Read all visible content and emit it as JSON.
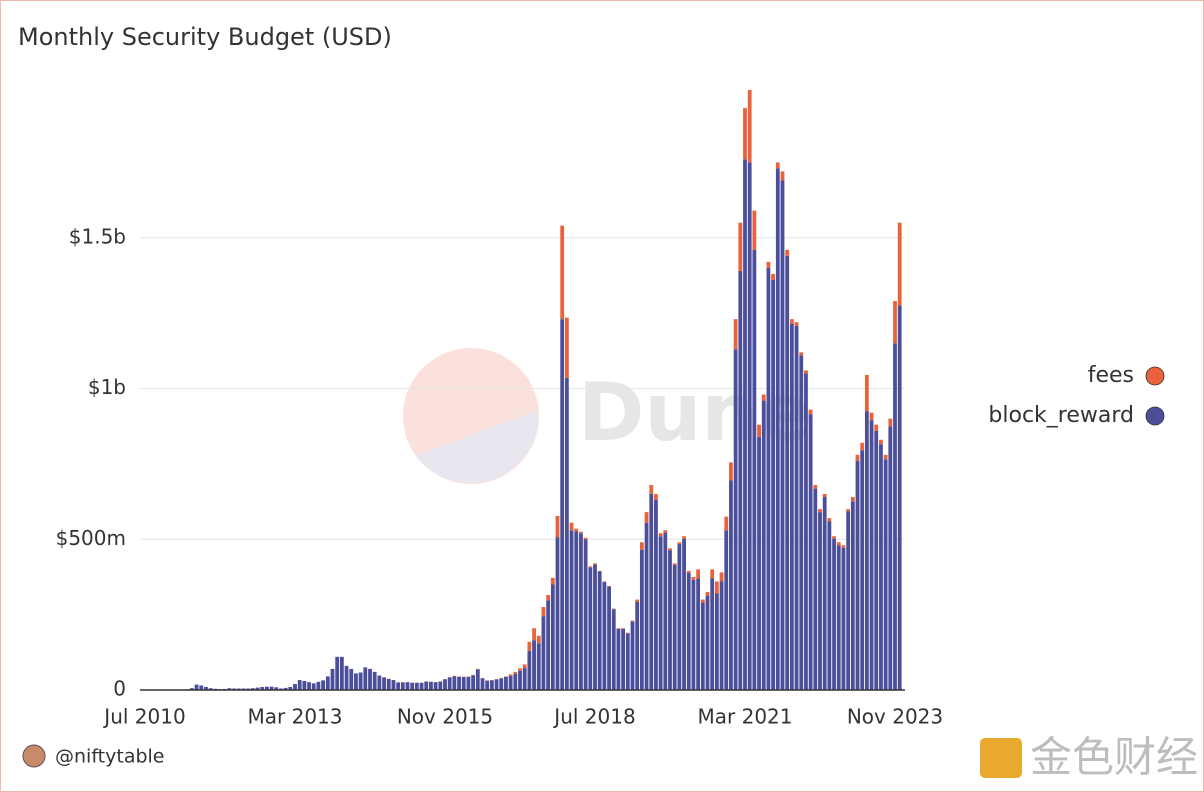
{
  "chart_data": {
    "type": "stacked_bar",
    "title": "Monthly Security Budget (USD)",
    "x": [
      "Jul 2010",
      "Aug 2010",
      "Sep 2010",
      "Oct 2010",
      "Nov 2010",
      "Dec 2010",
      "Jan 2011",
      "Feb 2011",
      "Mar 2011",
      "Apr 2011",
      "May 2011",
      "Jun 2011",
      "Jul 2011",
      "Aug 2011",
      "Sep 2011",
      "Oct 2011",
      "Nov 2011",
      "Dec 2011",
      "Jan 2012",
      "Feb 2012",
      "Mar 2012",
      "Apr 2012",
      "May 2012",
      "Jun 2012",
      "Jul 2012",
      "Aug 2012",
      "Sep 2012",
      "Oct 2012",
      "Nov 2012",
      "Dec 2012",
      "Jan 2013",
      "Feb 2013",
      "Mar 2013",
      "Apr 2013",
      "May 2013",
      "Jun 2013",
      "Jul 2013",
      "Aug 2013",
      "Sep 2013",
      "Oct 2013",
      "Nov 2013",
      "Dec 2013",
      "Jan 2014",
      "Feb 2014",
      "Mar 2014",
      "Apr 2014",
      "May 2014",
      "Jun 2014",
      "Jul 2014",
      "Aug 2014",
      "Sep 2014",
      "Oct 2014",
      "Nov 2014",
      "Dec 2014",
      "Jan 2015",
      "Feb 2015",
      "Mar 2015",
      "Apr 2015",
      "May 2015",
      "Jun 2015",
      "Jul 2015",
      "Aug 2015",
      "Sep 2015",
      "Oct 2015",
      "Nov 2015",
      "Dec 2015",
      "Jan 2016",
      "Feb 2016",
      "Mar 2016",
      "Apr 2016",
      "May 2016",
      "Jun 2016",
      "Jul 2016",
      "Aug 2016",
      "Sep 2016",
      "Oct 2016",
      "Nov 2016",
      "Dec 2016",
      "Jan 2017",
      "Feb 2017",
      "Mar 2017",
      "Apr 2017",
      "May 2017",
      "Jun 2017",
      "Jul 2017",
      "Aug 2017",
      "Sep 2017",
      "Oct 2017",
      "Nov 2017",
      "Dec 2017",
      "Jan 2018",
      "Feb 2018",
      "Mar 2018",
      "Apr 2018",
      "May 2018",
      "Jun 2018",
      "Jul 2018",
      "Aug 2018",
      "Sep 2018",
      "Oct 2018",
      "Nov 2018",
      "Dec 2018",
      "Jan 2019",
      "Feb 2019",
      "Mar 2019",
      "Apr 2019",
      "May 2019",
      "Jun 2019",
      "Jul 2019",
      "Aug 2019",
      "Sep 2019",
      "Oct 2019",
      "Nov 2019",
      "Dec 2019",
      "Jan 2020",
      "Feb 2020",
      "Mar 2020",
      "Apr 2020",
      "May 2020",
      "Jun 2020",
      "Jul 2020",
      "Aug 2020",
      "Sep 2020",
      "Oct 2020",
      "Nov 2020",
      "Dec 2020",
      "Jan 2021",
      "Feb 2021",
      "Mar 2021",
      "Apr 2021",
      "May 2021",
      "Jun 2021",
      "Jul 2021",
      "Aug 2021",
      "Sep 2021",
      "Oct 2021",
      "Nov 2021",
      "Dec 2021",
      "Jan 2022",
      "Feb 2022",
      "Mar 2022",
      "Apr 2022",
      "May 2022",
      "Jun 2022",
      "Jul 2022",
      "Aug 2022",
      "Sep 2022",
      "Oct 2022",
      "Nov 2022",
      "Dec 2022",
      "Jan 2023",
      "Feb 2023",
      "Mar 2023",
      "Apr 2023",
      "May 2023",
      "Jun 2023",
      "Jul 2023",
      "Aug 2023",
      "Sep 2023",
      "Oct 2023",
      "Nov 2023",
      "Dec 2023"
    ],
    "xticks": [
      "Jul 2010",
      "Mar 2013",
      "Nov 2015",
      "Jul 2018",
      "Mar 2021",
      "Nov 2023"
    ],
    "series": [
      {
        "name": "block_reward",
        "color": "#4b4e9b",
        "values": [
          100000.0,
          100000.0,
          100000.0,
          200000.0,
          300000.0,
          400000.0,
          600000.0,
          1000000.0,
          1100000.0,
          2000000.0,
          6000000.0,
          18000000.0,
          15000000.0,
          10000000.0,
          6000000.0,
          4000000.0,
          3000000.0,
          3500000.0,
          6000000.0,
          5000000.0,
          5000000.0,
          5000000.0,
          5000000.0,
          6000000.0,
          8000000.0,
          10000000.0,
          11000000.0,
          11000000.0,
          9000000.0,
          5000000.0,
          7000000.0,
          10000000.0,
          20000000.0,
          33000000.0,
          30000000.0,
          26000000.0,
          22000000.0,
          27000000.0,
          32000000.0,
          45000000.0,
          70000000.0,
          110000000.0,
          110000000.0,
          80000000.0,
          70000000.0,
          55000000.0,
          58000000.0,
          75000000.0,
          70000000.0,
          60000000.0,
          48000000.0,
          42000000.0,
          37000000.0,
          33000000.0,
          25000000.0,
          25000000.0,
          26000000.0,
          24000000.0,
          24000000.0,
          24000000.0,
          28000000.0,
          27000000.0,
          26000000.0,
          28000000.0,
          36000000.0,
          42000000.0,
          46000000.0,
          44000000.0,
          43000000.0,
          44000000.0,
          49000000.0,
          69000000.0,
          39000000.0,
          31000000.0,
          32000000.0,
          35000000.0,
          39000000.0,
          44000000.0,
          47000000.0,
          54000000.0,
          64000000.0,
          73000000.0,
          130000000.0,
          165000000.0,
          155000000.0,
          245000000.0,
          297000000.0,
          350000000.0,
          507000000.0,
          1230000000.0,
          1035000000.0,
          530000000.0,
          527000000.0,
          520000000.0,
          500000000.0,
          407000000.0,
          417000000.0,
          393000000.0,
          358000000.0,
          343000000.0,
          268000000.0,
          203000000.0,
          203000000.0,
          188000000.0,
          227000000.0,
          292000000.0,
          465000000.0,
          555000000.0,
          650000000.0,
          630000000.0,
          510000000.0,
          522000000.0,
          464000000.0,
          415000000.0,
          484000000.0,
          502000000.0,
          388000000.0,
          365000000.0,
          370000000.0,
          290000000.0,
          313000000.0,
          370000000.0,
          320000000.0,
          360000000.0,
          530000000.0,
          695000000.0,
          1130000000.0,
          1390000000.0,
          1760000000.0,
          1750000000.0,
          1460000000.0,
          840000000.0,
          960000000.0,
          1400000000.0,
          1360000000.0,
          1730000000.0,
          1690000000.0,
          1440000000.0,
          1215000000.0,
          1208000000.0,
          1110000000.0,
          1050000000.0,
          915000000.0,
          668000000.0,
          590000000.0,
          640000000.0,
          560000000.0,
          502000000.0,
          480000000.0,
          472000000.0,
          592000000.0,
          625000000.0,
          760000000.0,
          795000000.0,
          925000000.0,
          895000000.0,
          860000000.0,
          815000000.0,
          765000000.0,
          875000000.0,
          1150000000.0,
          1275000000.0
        ]
      },
      {
        "name": "fees",
        "color": "#e8633b",
        "values": [
          0,
          0,
          0,
          0,
          0,
          0,
          0,
          0,
          0,
          0,
          0,
          0,
          0,
          0,
          0,
          0,
          0,
          0,
          0,
          0,
          0,
          0,
          0,
          0,
          0,
          0,
          0,
          0,
          0,
          0,
          0,
          0,
          0,
          0,
          0,
          0,
          0,
          0,
          0,
          0,
          0,
          0,
          0,
          0,
          0,
          0,
          0,
          0,
          0,
          0,
          0,
          0,
          0,
          0,
          500000.0,
          500000.0,
          500000.0,
          500000.0,
          500000.0,
          500000.0,
          500000.0,
          500000.0,
          500000.0,
          500000.0,
          500000.0,
          500000.0,
          1000000.0,
          1000000.0,
          1000000.0,
          1000000.0,
          1000000.0,
          1000000.0,
          1000000.0,
          1000000.0,
          1000000.0,
          1000000.0,
          1000000.0,
          1000000.0,
          5000000.0,
          6000000.0,
          8000000.0,
          12000000.0,
          30000000.0,
          40000000.0,
          25000000.0,
          30000000.0,
          18000000.0,
          22000000.0,
          70000000.0,
          310000000.0,
          200000000.0,
          25000000.0,
          8000000.0,
          5000000.0,
          5000000.0,
          3000000.0,
          3000000.0,
          2000000.0,
          2000000.0,
          2000000.0,
          2000000.0,
          2000000.0,
          2000000.0,
          2000000.0,
          3000000.0,
          8000000.0,
          25000000.0,
          35000000.0,
          30000000.0,
          20000000.0,
          10000000.0,
          8000000.0,
          6000000.0,
          5000000.0,
          6000000.0,
          8000000.0,
          7000000.0,
          10000000.0,
          30000000.0,
          10000000.0,
          12000000.0,
          30000000.0,
          40000000.0,
          30000000.0,
          45000000.0,
          60000000.0,
          100000000.0,
          160000000.0,
          170000000.0,
          240000000.0,
          130000000.0,
          40000000.0,
          20000000.0,
          20000000.0,
          20000000.0,
          20000000.0,
          30000000.0,
          20000000.0,
          15000000.0,
          12000000.0,
          10000000.0,
          10000000.0,
          15000000.0,
          12000000.0,
          10000000.0,
          10000000.0,
          10000000.0,
          8000000.0,
          10000000.0,
          8000000.0,
          8000000.0,
          15000000.0,
          20000000.0,
          25000000.0,
          120000000.0,
          25000000.0,
          20000000.0,
          15000000.0,
          15000000.0,
          25000000.0,
          140000000.0,
          275000000.0
        ]
      }
    ],
    "ylim": [
      0,
      2000000000
    ],
    "yticks": [
      0,
      {
        "value": 500000000,
        "label": "$500m"
      },
      {
        "value": 1000000000,
        "label": "$1b"
      },
      {
        "value": 1500000000,
        "label": "$1.5b"
      }
    ],
    "grid": true,
    "legend": "right",
    "watermark": "Dune"
  },
  "footer": {
    "author": "@niftytable",
    "source": "金色财经"
  }
}
